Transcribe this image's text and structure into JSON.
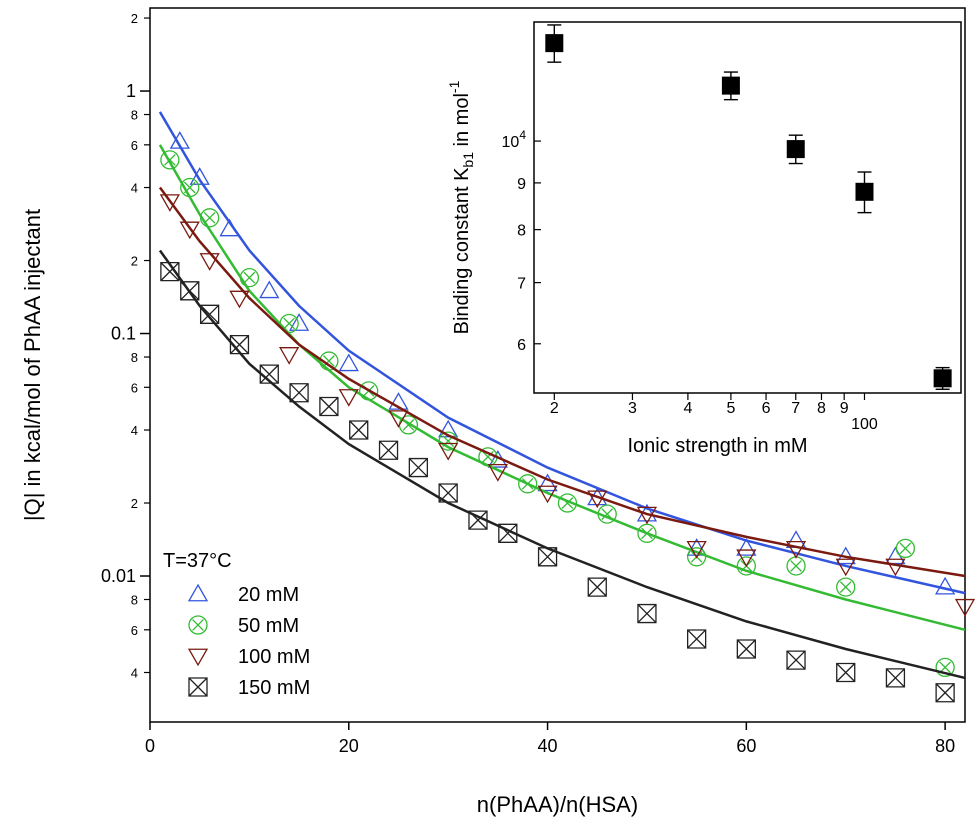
{
  "chart_data": [
    {
      "type": "scatter",
      "title": "",
      "xlabel": "n(PhAA)/n(HSA)",
      "ylabel": "|Q| in kcal/mol of PhAA injectant",
      "xlim": [
        0,
        82
      ],
      "ylim": [
        0.0025,
        2.2
      ],
      "yscale": "log",
      "x_ticks": [
        0,
        20,
        40,
        60,
        80
      ],
      "x_tick_labels": [
        "0",
        "20",
        "40",
        "60",
        "80"
      ],
      "y_major_ticks": [
        {
          "value": 1,
          "label": "1"
        },
        {
          "value": 0.1,
          "label": "0.1"
        },
        {
          "value": 0.01,
          "label": "0.01"
        }
      ],
      "y_minor_ticks": [
        {
          "value": 2,
          "label": "2"
        },
        {
          "value": 0.8,
          "label": "8"
        },
        {
          "value": 0.6,
          "label": "6"
        },
        {
          "value": 0.4,
          "label": "4"
        },
        {
          "value": 0.2,
          "label": "2"
        },
        {
          "value": 0.08,
          "label": "8"
        },
        {
          "value": 0.06,
          "label": "6"
        },
        {
          "value": 0.04,
          "label": "4"
        },
        {
          "value": 0.02,
          "label": "2"
        },
        {
          "value": 0.008,
          "label": "8"
        },
        {
          "value": 0.006,
          "label": "6"
        },
        {
          "value": 0.004,
          "label": "4"
        }
      ],
      "legend_title": "T=37°C",
      "legend_position": "bottom-left",
      "series": [
        {
          "name": "20 mM",
          "color": "#3355dd",
          "marker": "triangle-up",
          "x": [
            3,
            5,
            8,
            12,
            15,
            20,
            25,
            30,
            35,
            40,
            45,
            50,
            55,
            60,
            65,
            70,
            75,
            80
          ],
          "values": [
            0.62,
            0.44,
            0.27,
            0.15,
            0.11,
            0.075,
            0.052,
            0.04,
            0.03,
            0.024,
            0.021,
            0.018,
            0.013,
            0.013,
            0.014,
            0.012,
            0.012,
            0.009
          ],
          "fit_x": [
            1,
            5,
            10,
            15,
            20,
            30,
            40,
            50,
            60,
            70,
            82
          ],
          "fit_y": [
            0.82,
            0.43,
            0.22,
            0.13,
            0.085,
            0.045,
            0.028,
            0.019,
            0.014,
            0.011,
            0.0085
          ]
        },
        {
          "name": "50 mM",
          "color": "#33bb33",
          "marker": "circle-x",
          "x": [
            2,
            4,
            6,
            10,
            14,
            18,
            22,
            26,
            30,
            34,
            38,
            42,
            46,
            50,
            55,
            60,
            65,
            70,
            76,
            80
          ],
          "values": [
            0.52,
            0.4,
            0.3,
            0.17,
            0.11,
            0.077,
            0.058,
            0.042,
            0.036,
            0.031,
            0.024,
            0.02,
            0.018,
            0.015,
            0.012,
            0.011,
            0.011,
            0.009,
            0.013,
            0.0042
          ],
          "fit_x": [
            1,
            5,
            10,
            15,
            20,
            30,
            40,
            50,
            60,
            70,
            82
          ],
          "fit_y": [
            0.6,
            0.31,
            0.15,
            0.09,
            0.06,
            0.034,
            0.022,
            0.015,
            0.0105,
            0.008,
            0.006
          ]
        },
        {
          "name": "100 mM",
          "color": "#7a1a10",
          "marker": "triangle-down",
          "x": [
            2,
            4,
            6,
            9,
            14,
            20,
            25,
            30,
            35,
            40,
            45,
            50,
            55,
            60,
            65,
            70,
            75,
            82
          ],
          "values": [
            0.35,
            0.27,
            0.2,
            0.14,
            0.082,
            0.055,
            0.045,
            0.033,
            0.027,
            0.022,
            0.021,
            0.018,
            0.013,
            0.012,
            0.013,
            0.011,
            0.011,
            0.0075
          ],
          "fit_x": [
            1,
            5,
            10,
            15,
            20,
            30,
            40,
            50,
            60,
            70,
            82
          ],
          "fit_y": [
            0.4,
            0.24,
            0.14,
            0.09,
            0.065,
            0.038,
            0.025,
            0.018,
            0.0145,
            0.012,
            0.01
          ]
        },
        {
          "name": "150 mM",
          "color": "#222222",
          "marker": "square-x",
          "x": [
            2,
            4,
            6,
            9,
            12,
            15,
            18,
            21,
            24,
            27,
            30,
            33,
            36,
            40,
            45,
            50,
            55,
            60,
            65,
            70,
            75,
            80
          ],
          "values": [
            0.18,
            0.15,
            0.12,
            0.09,
            0.068,
            0.057,
            0.05,
            0.04,
            0.033,
            0.028,
            0.022,
            0.017,
            0.015,
            0.012,
            0.009,
            0.007,
            0.0055,
            0.005,
            0.0045,
            0.004,
            0.0038,
            0.0033
          ],
          "fit_x": [
            1,
            5,
            10,
            15,
            20,
            30,
            40,
            50,
            60,
            70,
            82
          ],
          "fit_y": [
            0.22,
            0.13,
            0.075,
            0.05,
            0.035,
            0.02,
            0.013,
            0.009,
            0.0065,
            0.005,
            0.0038
          ]
        }
      ]
    },
    {
      "type": "scatter",
      "title": "",
      "xlabel": "Ionic strength in mM",
      "ylabel": "Binding constant K",
      "ylabel_subscript": "b1",
      "ylabel_suffix": " in mol",
      "ylabel_superscript": "-1",
      "xscale": "log",
      "yscale": "log",
      "xlim": [
        18,
        165
      ],
      "ylim": [
        53000,
        135000
      ],
      "x_ticks": [
        20,
        30,
        40,
        50,
        60,
        70,
        80,
        90,
        100
      ],
      "x_tick_labels": [
        "2",
        "3",
        "4",
        "5",
        "6",
        "7",
        "8",
        "9",
        "100"
      ],
      "y_ticks": [
        60000,
        70000,
        80000,
        90000,
        100000
      ],
      "y_tick_labels": [
        "6",
        "7",
        "8",
        "9",
        "10"
      ],
      "y_tick_10000_sup": "4",
      "series": [
        {
          "name": "Kb1",
          "color": "#000000",
          "marker": "filled-square",
          "x": [
            20,
            50,
            70,
            100,
            150
          ],
          "values": [
            128000,
            115000,
            98000,
            88000,
            55000
          ],
          "error": [
            6000,
            4000,
            3500,
            4500,
            1500
          ]
        }
      ]
    }
  ]
}
